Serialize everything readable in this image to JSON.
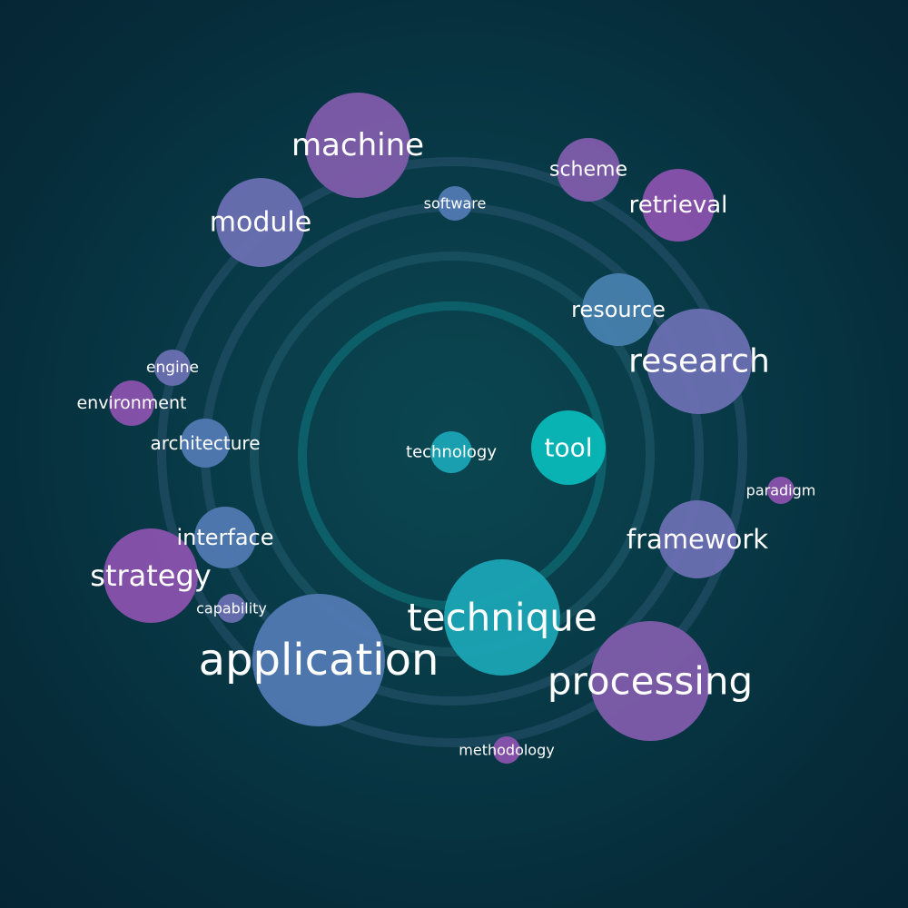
{
  "colors": {
    "background": "#062c3a",
    "ring_outer": "#2a5470",
    "ring_mid": "#1f5a6a",
    "ring_inner": "#0d6a72",
    "purple": "#7f5cab",
    "violet": "#8a52ad",
    "blue_purple": "#6a6fb2",
    "blue": "#5079b2",
    "steel_blue": "#4680ad",
    "teal": "#1aa4b4",
    "cyan": "#0ab8b8"
  },
  "rings": [
    {
      "name": "ring-outer",
      "color": "ring_outer"
    },
    {
      "name": "ring-second",
      "color": "ring_outer"
    },
    {
      "name": "ring-third",
      "color": "ring_mid"
    },
    {
      "name": "ring-inner",
      "color": "ring_inner"
    }
  ],
  "nodes": [
    {
      "label": "machine",
      "color": "purple"
    },
    {
      "label": "software",
      "color": "blue"
    },
    {
      "label": "scheme",
      "color": "purple"
    },
    {
      "label": "retrieval",
      "color": "violet"
    },
    {
      "label": "module",
      "color": "blue_purple"
    },
    {
      "label": "resource",
      "color": "steel_blue"
    },
    {
      "label": "research",
      "color": "blue_purple"
    },
    {
      "label": "engine",
      "color": "blue_purple"
    },
    {
      "label": "environment",
      "color": "violet"
    },
    {
      "label": "architecture",
      "color": "blue"
    },
    {
      "label": "technology",
      "color": "teal"
    },
    {
      "label": "tool",
      "color": "cyan"
    },
    {
      "label": "paradigm",
      "color": "violet"
    },
    {
      "label": "framework",
      "color": "blue_purple"
    },
    {
      "label": "interface",
      "color": "blue"
    },
    {
      "label": "strategy",
      "color": "violet"
    },
    {
      "label": "capability",
      "color": "blue_purple"
    },
    {
      "label": "technique",
      "color": "teal"
    },
    {
      "label": "application",
      "color": "blue"
    },
    {
      "label": "processing",
      "color": "purple"
    },
    {
      "label": "methodology",
      "color": "violet"
    }
  ]
}
